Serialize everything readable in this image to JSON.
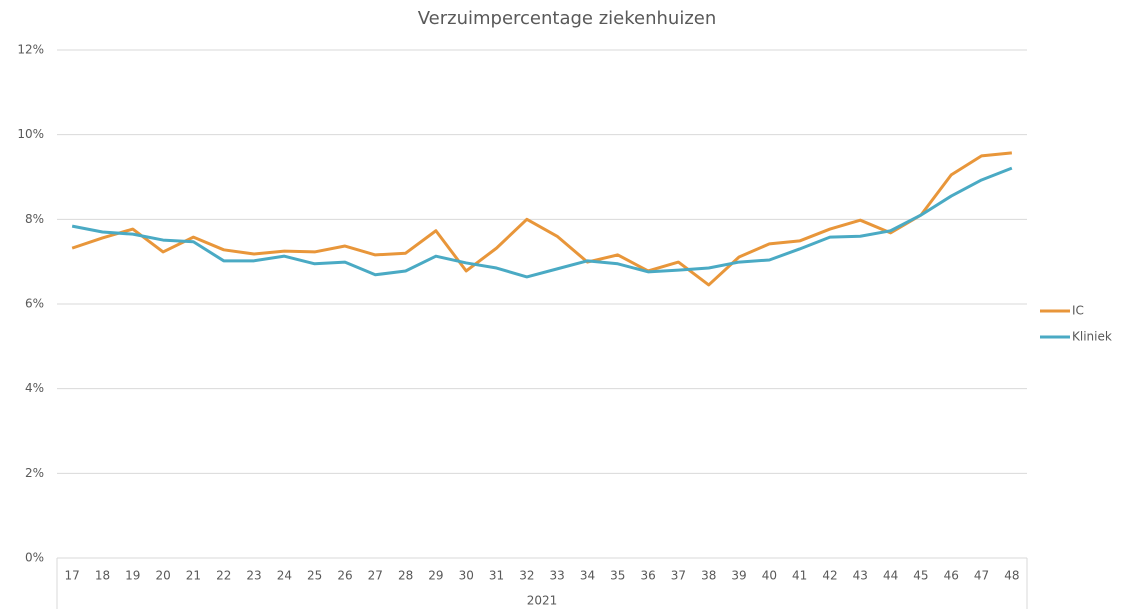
{
  "chart_data": {
    "type": "line",
    "title": "Verzuimpercentage ziekenhuizen",
    "xlabel": "2021",
    "categories": [
      "17",
      "18",
      "19",
      "20",
      "21",
      "22",
      "23",
      "24",
      "25",
      "26",
      "27",
      "28",
      "29",
      "30",
      "31",
      "32",
      "33",
      "34",
      "35",
      "36",
      "37",
      "38",
      "39",
      "40",
      "41",
      "42",
      "43",
      "44",
      "45",
      "46",
      "47",
      "48"
    ],
    "series": [
      {
        "name": "IC",
        "color": "#e8963a",
        "values": [
          7.32,
          7.56,
          7.77,
          7.23,
          7.58,
          7.28,
          7.18,
          7.25,
          7.23,
          7.37,
          7.16,
          7.2,
          7.73,
          6.78,
          7.32,
          8.0,
          7.6,
          6.99,
          7.16,
          6.78,
          6.99,
          6.45,
          7.11,
          7.42,
          7.49,
          7.77,
          7.98,
          7.68,
          8.1,
          9.05,
          9.5,
          9.57
        ]
      },
      {
        "name": "Kliniek",
        "color": "#4aaac4",
        "values": [
          7.84,
          7.7,
          7.65,
          7.51,
          7.47,
          7.02,
          7.02,
          7.13,
          6.95,
          6.99,
          6.69,
          6.78,
          7.13,
          6.97,
          6.85,
          6.64,
          6.83,
          7.02,
          6.95,
          6.76,
          6.8,
          6.85,
          6.99,
          7.04,
          7.3,
          7.58,
          7.6,
          7.73,
          8.1,
          8.55,
          8.93,
          9.21
        ]
      }
    ],
    "ylim": [
      0,
      12
    ],
    "yticks": [
      {
        "value": 0,
        "label": "0%"
      },
      {
        "value": 2,
        "label": "2%"
      },
      {
        "value": 4,
        "label": "4%"
      },
      {
        "value": 6,
        "label": "6%"
      },
      {
        "value": 8,
        "label": "8%"
      },
      {
        "value": 10,
        "label": "10%"
      },
      {
        "value": 12,
        "label": "12%"
      }
    ],
    "grid": true,
    "legend": "right"
  }
}
